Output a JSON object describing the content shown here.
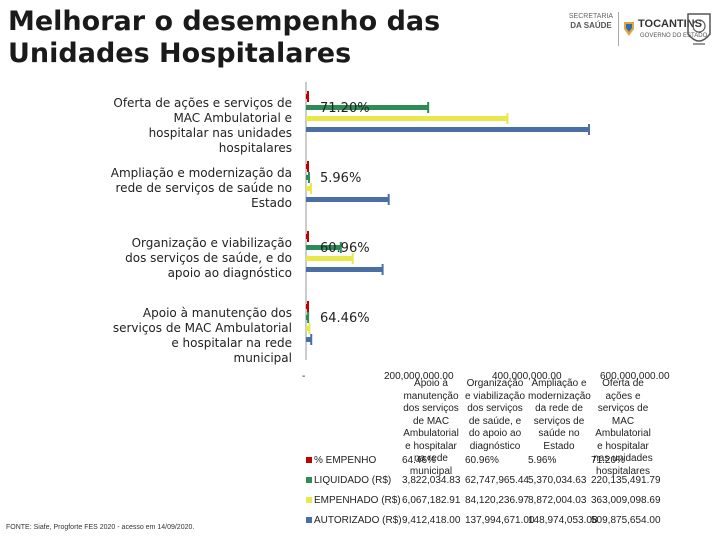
{
  "page": {
    "title": "Melhorar o desempenho das Unidades Hospitalares",
    "source": "FONTE: Siafe, Progforte FES 2020 - acesso em 14/09/2020."
  },
  "logos": {
    "secretaria_line1": "SECRETARIA",
    "secretaria_line2": "DA SAÚDE",
    "state_name": "TOCANTINS",
    "state_sub": "GOVERNO DO ESTADO"
  },
  "chart_data": {
    "type": "bar",
    "orientation": "horizontal",
    "categories": [
      "Oferta de ações e serviços de MAC Ambulatorial e hospitalar nas unidades hospitalares",
      "Ampliação e modernização da rede de serviços de saúde no Estado",
      "Organização e viabilização dos serviços de saúde, e do apoio ao diagnóstico",
      "Apoio à manutenção dos serviços de MAC Ambulatorial e hospitalar na rede municipal"
    ],
    "series": [
      {
        "name": "% EMPENHO",
        "color": "#c00000",
        "display": [
          "71.20%",
          "5.96%",
          "60.96%",
          "64.46%"
        ],
        "values": [
          0,
          0,
          0,
          0
        ]
      },
      {
        "name": "LIQUIDADO (R$)",
        "color": "#2e8b57",
        "display": [
          "220,135,491.79",
          "5,370,034.63",
          "62,747,965.44",
          "3,822,034.83"
        ],
        "values": [
          220135491.79,
          5370034.63,
          62747965.44,
          3822034.83
        ]
      },
      {
        "name": "EMPENHADO (R$)",
        "color": "#e8e84a",
        "display": [
          "363,009,098.69",
          "8,872,004.03",
          "84,120,236.97",
          "6,067,182.91"
        ],
        "values": [
          363009098.69,
          8872004.03,
          84120236.97,
          6067182.91
        ]
      },
      {
        "name": "AUTORIZADO (R$)",
        "color": "#4a6fa5",
        "display": [
          "509,875,654.00",
          "148,974,053.08",
          "137,994,671.00",
          "9,412,418.00"
        ],
        "values": [
          509875654.0,
          148974053.08,
          137994671.0,
          9412418.0
        ]
      }
    ],
    "data_labels": [
      "71.20%",
      "5.96%",
      "60.96%",
      "64.46%"
    ],
    "xlim": [
      0,
      600000000
    ],
    "x_ticks": [
      "-",
      "200,000,000.00",
      "400,000,000.00",
      "600,000,000.00"
    ],
    "table_headers": [
      "Apoio à manutenção dos serviços de MAC Ambulatorial e hospitalar na rede municipal",
      "Organização e viabilização dos serviços de saúde, e do apoio ao diagnóstico",
      "Ampliação e modernização da rede de serviços de saúde no Estado",
      "Oferta de ações e serviços de MAC Ambulatorial e hospitalar nas unidades hospitalares"
    ],
    "table_rows": [
      {
        "label": "% EMPENHO",
        "values": [
          "64.46%",
          "60.96%",
          "5.96%",
          "71.20%"
        ]
      },
      {
        "label": "LIQUIDADO (R$)",
        "values": [
          "3,822,034.83",
          "62,747,965.44",
          "5,370,034.63",
          "220,135,491.79"
        ]
      },
      {
        "label": "EMPENHADO (R$)",
        "values": [
          "6,067,182.91",
          "84,120,236.97",
          "8,872,004.03",
          "363,009,098.69"
        ]
      },
      {
        "label": "AUTORIZADO (R$)",
        "values": [
          "9,412,418.00",
          "137,994,671.00",
          "148,974,053.08",
          "509,875,654.00"
        ]
      }
    ]
  }
}
